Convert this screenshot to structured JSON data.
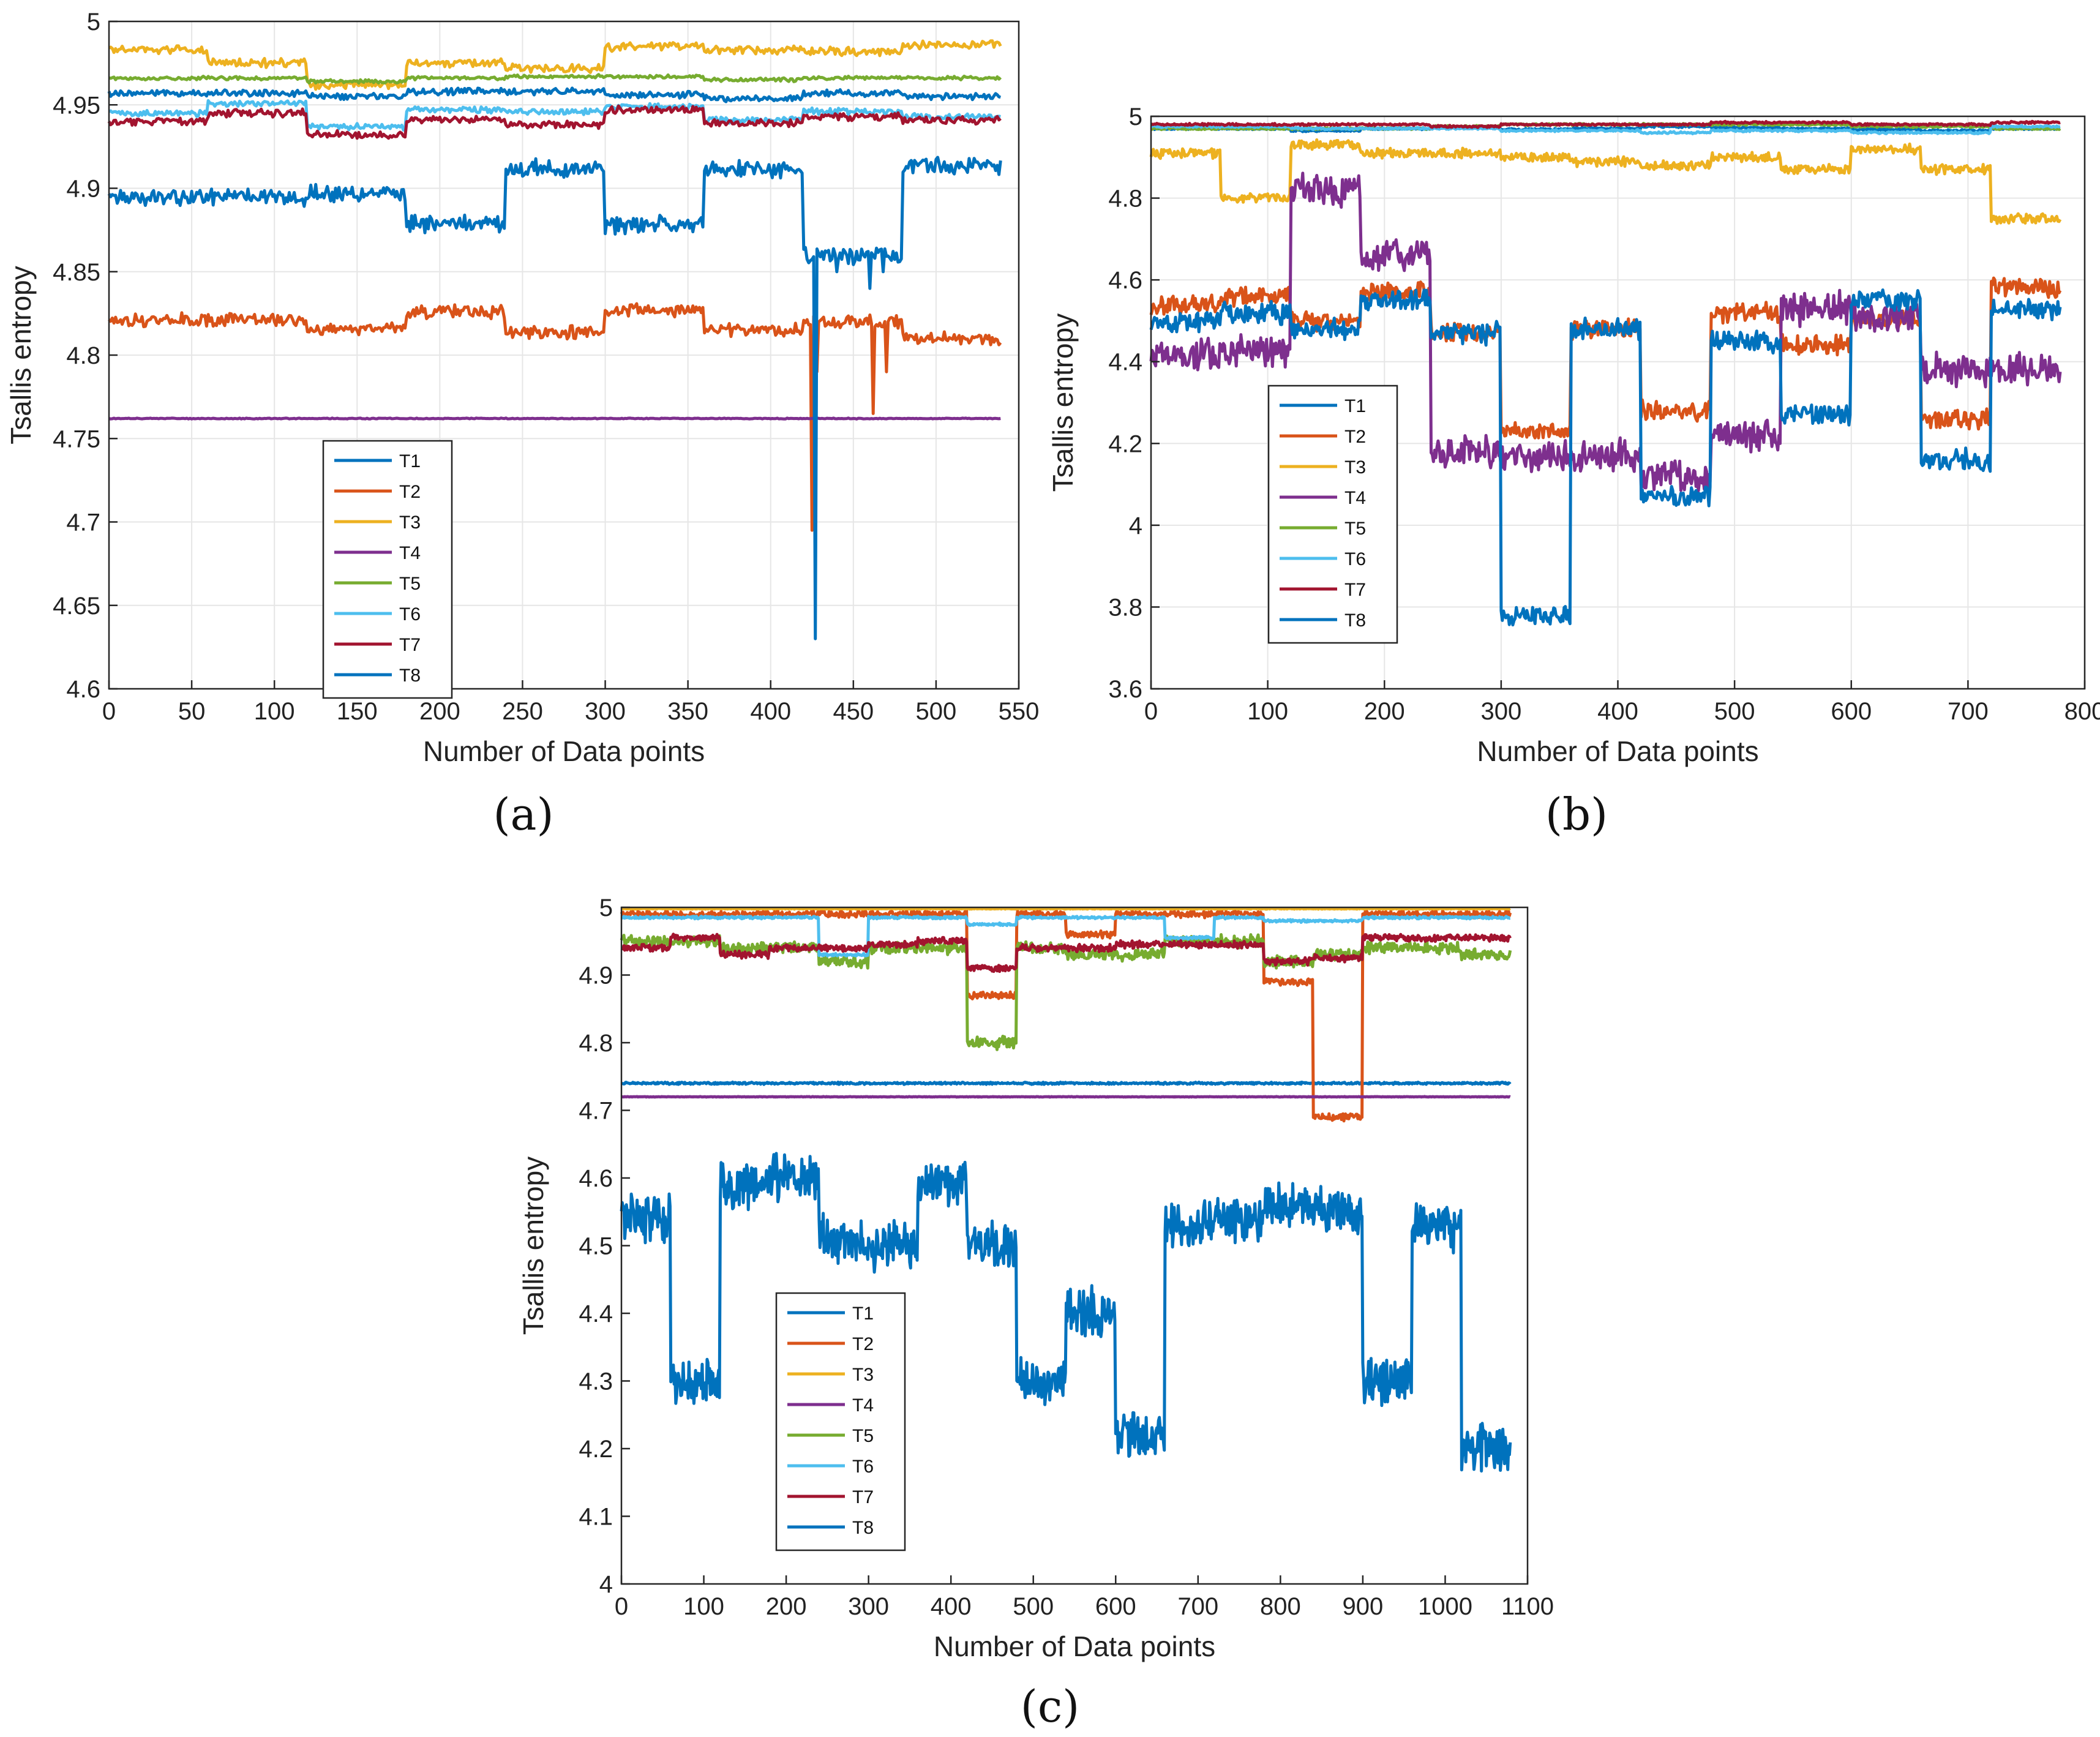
{
  "figure": {
    "panel_labels": [
      "(a)",
      "(b)",
      "(c)"
    ]
  },
  "legend_entries": [
    "T1",
    "T2",
    "T3",
    "T4",
    "T5",
    "T6",
    "T7",
    "T8"
  ],
  "colors": {
    "T1": "#0072bd",
    "T2": "#d95319",
    "T3": "#edb120",
    "T4": "#7e2f8e",
    "T5": "#77ac30",
    "T6": "#4dbeee",
    "T7": "#a2142f",
    "T8": "#0072bd",
    "grid": "#e6e6e6",
    "axis": "#262626"
  },
  "chart_data": [
    {
      "panel": "(a)",
      "type": "line",
      "xlabel": "Number of Data points",
      "ylabel": "Tsallis entropy",
      "xlim": [
        0,
        550
      ],
      "ylim": [
        4.6,
        5.0
      ],
      "xticks": [
        0,
        50,
        100,
        150,
        200,
        250,
        300,
        350,
        400,
        450,
        500,
        550
      ],
      "yticks": [
        4.6,
        4.65,
        4.7,
        4.75,
        4.8,
        4.85,
        4.9,
        4.95,
        5.0
      ],
      "ytick_labels": [
        "4.6",
        "4.65",
        "4.7",
        "4.75",
        "4.8",
        "4.85",
        "4.9",
        "4.95",
        "5"
      ],
      "grid": true,
      "legend_location": "lower-left inside",
      "n_points": 540,
      "segment_length": 60,
      "series": [
        {
          "name": "T1",
          "levels": [
            4.957,
            4.957,
            4.955,
            4.958,
            4.958,
            4.956,
            4.954,
            4.957,
            4.955
          ],
          "noise": 0.0015
        },
        {
          "name": "T2",
          "levels": [
            4.821,
            4.821,
            4.816,
            4.826,
            4.814,
            4.827,
            4.815,
            4.82,
            4.81
          ],
          "noise": 0.003,
          "spikes": [
            [
              425,
              4.695
            ],
            [
              428,
              4.79
            ],
            [
              462,
              4.765
            ],
            [
              470,
              4.79
            ]
          ]
        },
        {
          "name": "T3",
          "levels": [
            4.983,
            4.975,
            4.962,
            4.975,
            4.972,
            4.985,
            4.983,
            4.982,
            4.986
          ],
          "noise": 0.002
        },
        {
          "name": "T4",
          "levels": [
            4.762,
            4.762,
            4.762,
            4.762,
            4.762,
            4.762,
            4.762,
            4.762,
            4.762
          ],
          "noise": 0.0002
        },
        {
          "name": "T5",
          "levels": [
            4.966,
            4.966,
            4.964,
            4.966,
            4.967,
            4.967,
            4.965,
            4.966,
            4.966
          ],
          "noise": 0.0008
        },
        {
          "name": "T6",
          "levels": [
            4.945,
            4.951,
            4.937,
            4.947,
            4.946,
            4.949,
            4.941,
            4.946,
            4.943
          ],
          "noise": 0.0015
        },
        {
          "name": "T7",
          "levels": [
            4.94,
            4.945,
            4.932,
            4.941,
            4.938,
            4.947,
            4.939,
            4.943,
            4.941
          ],
          "noise": 0.0018
        },
        {
          "name": "T8",
          "levels": [
            4.895,
            4.895,
            4.897,
            4.879,
            4.912,
            4.878,
            4.911,
            4.86,
            4.913
          ],
          "noise": 0.004,
          "spikes": [
            [
              427,
              4.63
            ],
            [
              440,
              4.85
            ],
            [
              460,
              4.84
            ],
            [
              468,
              4.85
            ]
          ]
        }
      ]
    },
    {
      "panel": "(b)",
      "type": "line",
      "xlabel": "Number of Data points",
      "ylabel": "Tsallis entropy",
      "xlim": [
        0,
        800
      ],
      "ylim": [
        3.6,
        5.0
      ],
      "xticks": [
        0,
        100,
        200,
        300,
        400,
        500,
        600,
        700,
        800
      ],
      "yticks": [
        3.6,
        3.8,
        4.0,
        4.2,
        4.4,
        4.6,
        4.8,
        5.0
      ],
      "ytick_labels": [
        "3.6",
        "3.8",
        "4",
        "4.2",
        "4.4",
        "4.6",
        "4.8",
        "5"
      ],
      "grid": true,
      "legend_location": "lower-left inside",
      "n_points": 780,
      "segment_length": 60,
      "series": [
        {
          "name": "T1",
          "levels": [
            4.97,
            4.97,
            4.965,
            4.97,
            4.972,
            4.968,
            4.97,
            4.975,
            4.972,
            4.97,
            4.968,
            4.965,
            4.97
          ],
          "noise": 0.002
        },
        {
          "name": "T2",
          "levels": [
            4.54,
            4.56,
            4.5,
            4.57,
            4.47,
            4.23,
            4.48,
            4.28,
            4.52,
            4.44,
            4.5,
            4.26,
            4.58
          ],
          "noise": 0.018
        },
        {
          "name": "T3",
          "levels": [
            4.91,
            4.8,
            4.93,
            4.91,
            4.91,
            4.9,
            4.89,
            4.88,
            4.9,
            4.87,
            4.92,
            4.87,
            4.75
          ],
          "noise": 0.009
        },
        {
          "name": "T4",
          "levels": [
            4.42,
            4.43,
            4.82,
            4.66,
            4.18,
            4.17,
            4.17,
            4.12,
            4.22,
            4.53,
            4.51,
            4.38,
            4.38
          ],
          "noise": 0.03
        },
        {
          "name": "T5",
          "levels": [
            4.97,
            4.97,
            4.97,
            4.97,
            4.975,
            4.98,
            4.98,
            4.98,
            4.98,
            4.98,
            4.975,
            4.975,
            4.97
          ],
          "noise": 0.002
        },
        {
          "name": "T6",
          "levels": [
            4.975,
            4.975,
            4.97,
            4.97,
            4.97,
            4.965,
            4.965,
            4.96,
            4.965,
            4.965,
            4.96,
            4.96,
            4.975
          ],
          "noise": 0.002
        },
        {
          "name": "T7",
          "levels": [
            4.98,
            4.98,
            4.98,
            4.98,
            4.975,
            4.98,
            4.98,
            4.98,
            4.985,
            4.985,
            4.98,
            4.98,
            4.985
          ],
          "noise": 0.002
        },
        {
          "name": "T8",
          "levels": [
            4.5,
            4.52,
            4.48,
            4.55,
            4.47,
            3.78,
            4.48,
            4.07,
            4.45,
            4.27,
            4.55,
            4.16,
            4.53
          ],
          "noise": 0.02
        }
      ]
    },
    {
      "panel": "(c)",
      "type": "line",
      "xlabel": "Number of Data points",
      "ylabel": "Tsallis entropy",
      "xlim": [
        0,
        1100
      ],
      "ylim": [
        4.0,
        5.0
      ],
      "xticks": [
        0,
        100,
        200,
        300,
        400,
        500,
        600,
        700,
        800,
        900,
        1000,
        1100
      ],
      "yticks": [
        4.0,
        4.1,
        4.2,
        4.3,
        4.4,
        4.5,
        4.6,
        4.7,
        4.8,
        4.9,
        5.0
      ],
      "ytick_labels": [
        "4",
        "4.1",
        "4.2",
        "4.3",
        "4.4",
        "4.5",
        "4.6",
        "4.7",
        "4.8",
        "4.9",
        "5"
      ],
      "grid": false,
      "legend_location": "lower-left inside",
      "n_points": 1080,
      "segment_length": 60,
      "series": [
        {
          "name": "T1",
          "levels": [
            4.74,
            4.74,
            4.74,
            4.74,
            4.74,
            4.74,
            4.74,
            4.74,
            4.74,
            4.74,
            4.74,
            4.74,
            4.74,
            4.74,
            4.74,
            4.74,
            4.74,
            4.74
          ],
          "noise": 0.0012
        },
        {
          "name": "T2",
          "levels": [
            4.99,
            4.99,
            4.99,
            4.99,
            4.99,
            4.99,
            4.99,
            4.87,
            4.99,
            4.96,
            4.99,
            4.99,
            4.99,
            4.89,
            4.69,
            4.99,
            4.99,
            4.99
          ],
          "noise": 0.004
        },
        {
          "name": "T3",
          "levels": [
            4.998,
            4.998,
            4.998,
            4.998,
            4.998,
            4.998,
            4.998,
            4.998,
            4.998,
            4.998,
            4.998,
            4.998,
            4.998,
            4.998,
            4.998,
            4.998,
            4.998,
            4.998
          ],
          "noise": 0.0005
        },
        {
          "name": "T4",
          "levels": [
            4.72,
            4.72,
            4.72,
            4.72,
            4.72,
            4.72,
            4.72,
            4.72,
            4.72,
            4.72,
            4.72,
            4.72,
            4.72,
            4.72,
            4.72,
            4.72,
            4.72,
            4.72
          ],
          "noise": 0.0003
        },
        {
          "name": "T5",
          "levels": [
            4.95,
            4.95,
            4.94,
            4.94,
            4.92,
            4.94,
            4.94,
            4.8,
            4.94,
            4.93,
            4.93,
            4.95,
            4.95,
            4.92,
            4.93,
            4.94,
            4.94,
            4.93
          ],
          "noise": 0.007
        },
        {
          "name": "T6",
          "levels": [
            4.985,
            4.985,
            4.985,
            4.985,
            4.93,
            4.985,
            4.985,
            4.975,
            4.985,
            4.985,
            4.985,
            4.955,
            4.985,
            4.98,
            4.98,
            4.985,
            4.985,
            4.985
          ],
          "noise": 0.0015
        },
        {
          "name": "T7",
          "levels": [
            4.94,
            4.955,
            4.93,
            4.94,
            4.94,
            4.945,
            4.95,
            4.91,
            4.94,
            4.94,
            4.945,
            4.945,
            4.945,
            4.92,
            4.925,
            4.955,
            4.955,
            4.955
          ],
          "noise": 0.004
        },
        {
          "name": "T8",
          "levels": [
            4.54,
            4.3,
            4.59,
            4.6,
            4.51,
            4.5,
            4.59,
            4.5,
            4.3,
            4.4,
            4.22,
            4.53,
            4.54,
            4.56,
            4.55,
            4.3,
            4.53,
            4.2
          ],
          "noise": 0.028
        }
      ]
    }
  ]
}
